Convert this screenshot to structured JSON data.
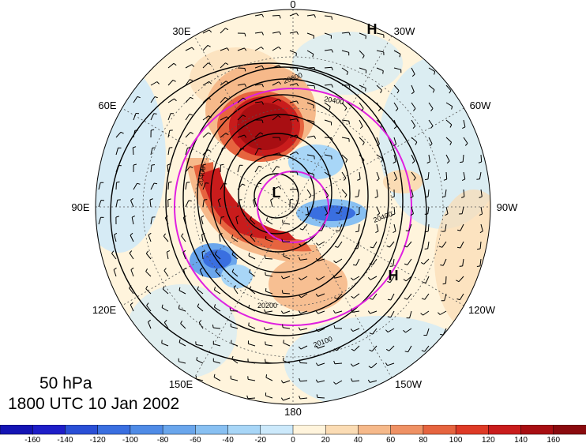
{
  "title": {
    "level": "50 hPa",
    "datetime": "1800 UTC 10 Jan 2002"
  },
  "longitude_labels": [
    {
      "text": "0",
      "lon": 0
    },
    {
      "text": "30W",
      "lon": -30
    },
    {
      "text": "60W",
      "lon": -60
    },
    {
      "text": "90W",
      "lon": -90
    },
    {
      "text": "120W",
      "lon": -120
    },
    {
      "text": "150W",
      "lon": -150
    },
    {
      "text": "180",
      "lon": 180
    },
    {
      "text": "150E",
      "lon": 150
    },
    {
      "text": "120E",
      "lon": 120
    },
    {
      "text": "90E",
      "lon": 90
    },
    {
      "text": "60E",
      "lon": 60
    },
    {
      "text": "30E",
      "lon": 30
    }
  ],
  "pressure_centers": [
    {
      "text": "H",
      "kind": "high"
    },
    {
      "text": "H",
      "kind": "high"
    },
    {
      "text": "L",
      "kind": "low"
    }
  ],
  "contour_labels": [
    "20400",
    "20200",
    "20100",
    "20400",
    "20600",
    "20400"
  ],
  "colorbar": {
    "ticks": [
      "-160",
      "-140",
      "-120",
      "-100",
      "-80",
      "-60",
      "-40",
      "-20",
      "0",
      "20",
      "40",
      "60",
      "80",
      "100",
      "120",
      "140",
      "160"
    ],
    "colors": [
      "#1e1ec8",
      "#2a4fd6",
      "#3a6fe0",
      "#4f8be6",
      "#6aa6ec",
      "#88c0f2",
      "#a8d6f7",
      "#cce9fb",
      "#fff4dc",
      "#fbdcb4",
      "#f6b98a",
      "#ef9164",
      "#e6643f",
      "#de3a26",
      "#c91c1c",
      "#a80e12",
      "#8a0a0e"
    ]
  }
}
